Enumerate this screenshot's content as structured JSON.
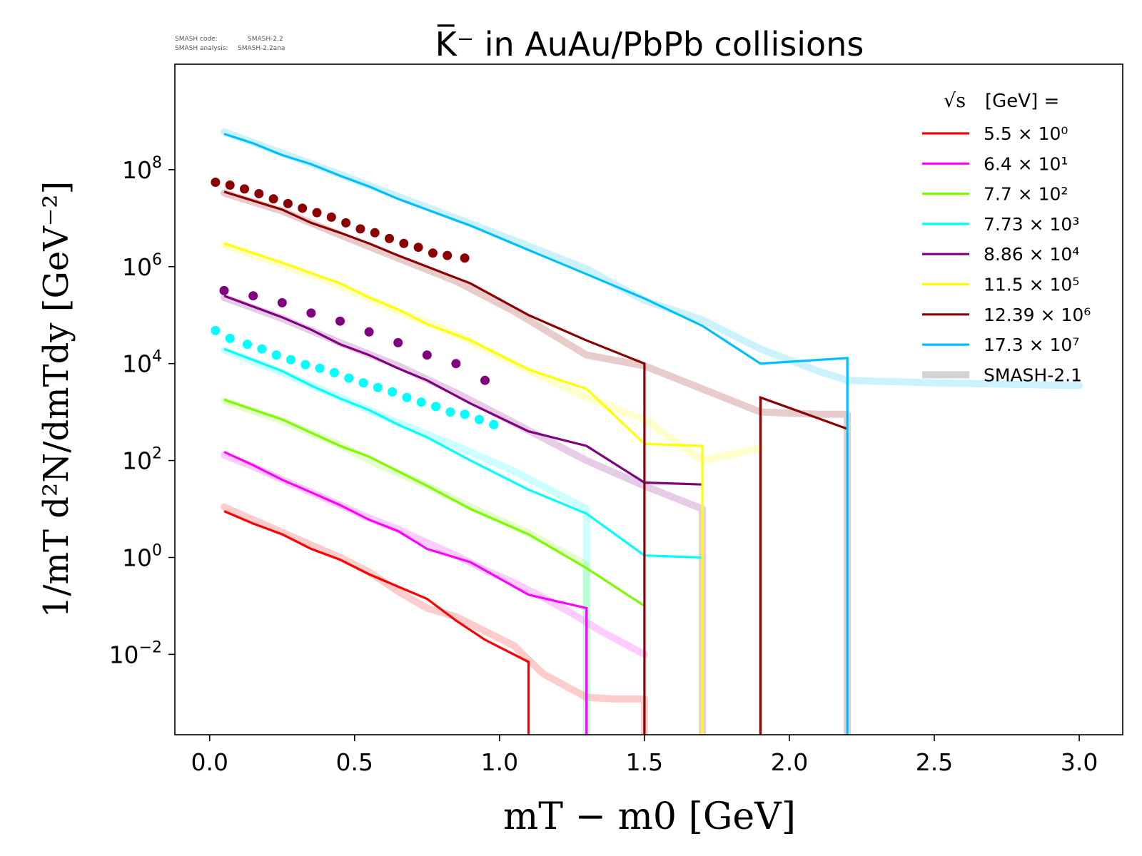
{
  "header": {
    "code_line_label": "SMASH code:",
    "code_line_value": "SMASH-2.2",
    "analysis_line_label": "SMASH analysis:",
    "analysis_line_value": "SMASH-2.2ana"
  },
  "chart_data": {
    "type": "line",
    "title": "K̅⁻ in AuAu/PbPb collisions",
    "xlabel": "mT − m0 [GeV]",
    "ylabel": "1/mT d²N/dmTdy [GeV⁻²]",
    "xscale": "linear",
    "yscale": "log",
    "xlim": [
      -0.12,
      3.15
    ],
    "ylim": [
      0.00022,
      15000000000
    ],
    "grid": false,
    "x_ticks": [
      {
        "value": 0.0,
        "label": "0.0"
      },
      {
        "value": 0.5,
        "label": "0.5"
      },
      {
        "value": 1.0,
        "label": "1.0"
      },
      {
        "value": 1.5,
        "label": "1.5"
      },
      {
        "value": 2.0,
        "label": "2.0"
      },
      {
        "value": 2.5,
        "label": "2.5"
      },
      {
        "value": 3.0,
        "label": "3.0"
      }
    ],
    "y_ticks": [
      {
        "value": 100000000,
        "base": "10",
        "exp": "8"
      },
      {
        "value": 1000000,
        "base": "10",
        "exp": "6"
      },
      {
        "value": 10000,
        "base": "10",
        "exp": "4"
      },
      {
        "value": 100,
        "base": "10",
        "exp": "2"
      },
      {
        "value": 1,
        "base": "10",
        "exp": "0"
      },
      {
        "value": 0.01,
        "base": "10",
        "exp": "−2"
      }
    ],
    "legend": {
      "location": "upper-right",
      "title_prefix": "√s",
      "title_suffix": "[GeV] =",
      "reference_label": "SMASH-2.1",
      "reference_color": "#d3d3d3"
    },
    "series": [
      {
        "name": "5.5 × 10⁰",
        "color": "#ff0000",
        "x": [
          0.05,
          0.15,
          0.25,
          0.35,
          0.45,
          0.55,
          0.65,
          0.75,
          0.85,
          0.95,
          1.1,
          1.1
        ],
        "y": [
          9,
          5,
          3,
          1.5,
          0.9,
          0.45,
          0.25,
          0.14,
          0.05,
          0.02,
          0.007,
          0.0002
        ],
        "ref_x": [
          0.05,
          0.15,
          0.25,
          0.35,
          0.45,
          0.55,
          0.65,
          0.75,
          0.85,
          0.95,
          1.05,
          1.15,
          1.3,
          1.4,
          1.5,
          1.5
        ],
        "ref_y": [
          11,
          6,
          3.3,
          1.8,
          1.0,
          0.5,
          0.2,
          0.09,
          0.06,
          0.03,
          0.015,
          0.004,
          0.0013,
          0.0012,
          0.0012,
          0.0002
        ],
        "exp_x": [],
        "exp_y": []
      },
      {
        "name": "6.4 × 10¹",
        "color": "#ff00ff",
        "x": [
          0.05,
          0.15,
          0.25,
          0.35,
          0.45,
          0.55,
          0.65,
          0.75,
          0.9,
          1.1,
          1.3,
          1.3
        ],
        "y": [
          150,
          80,
          40,
          22,
          12,
          6,
          3.5,
          1.5,
          0.8,
          0.17,
          0.09,
          0.0002
        ],
        "ref_x": [
          0.05,
          0.15,
          0.25,
          0.35,
          0.45,
          0.55,
          0.65,
          0.75,
          0.85,
          0.95,
          1.05,
          1.15,
          1.25,
          1.35,
          1.5
        ],
        "ref_y": [
          130,
          75,
          40,
          22,
          12,
          6.5,
          3.8,
          2.0,
          1.1,
          0.55,
          0.3,
          0.15,
          0.07,
          0.03,
          0.01
        ],
        "exp_x": [],
        "exp_y": []
      },
      {
        "name": "7.7 × 10²",
        "color": "#7cfc00",
        "x": [
          0.05,
          0.25,
          0.45,
          0.55,
          0.75,
          0.9,
          1.1,
          1.3,
          1.5
        ],
        "y": [
          1800,
          700,
          200,
          120,
          30,
          10,
          3,
          0.6,
          0.1
        ],
        "ref_x": [
          0.05,
          0.25,
          0.45,
          0.55,
          0.75,
          0.9,
          1.1,
          1.3,
          1.3
        ],
        "ref_y": [
          1700,
          650,
          210,
          100,
          30,
          11,
          3.2,
          0.7,
          0.0002
        ],
        "exp_x": [],
        "exp_y": []
      },
      {
        "name": "7.73 × 10³",
        "color": "#00ffff",
        "x": [
          0.05,
          0.25,
          0.35,
          0.45,
          0.55,
          0.65,
          0.75,
          0.9,
          1.1,
          1.3,
          1.5,
          1.7,
          1.7
        ],
        "y": [
          20000,
          7000,
          3500,
          1900,
          1100,
          550,
          300,
          100,
          25,
          8,
          1.1,
          1.0,
          0.0002
        ],
        "ref_x": [
          0.05,
          0.25,
          0.45,
          0.65,
          0.85,
          1.05,
          1.3,
          1.3
        ],
        "ref_y": [
          19000,
          6500,
          2000,
          600,
          200,
          60,
          10,
          0.0002
        ],
        "exp_x": [
          0.02,
          0.07,
          0.13,
          0.18,
          0.23,
          0.28,
          0.33,
          0.38,
          0.43,
          0.48,
          0.53,
          0.58,
          0.63,
          0.68,
          0.73,
          0.78,
          0.83,
          0.88,
          0.93,
          0.98
        ],
        "exp_y": [
          48000,
          33000,
          25000,
          20000,
          15000,
          12000,
          9500,
          8000,
          6500,
          5000,
          4000,
          3200,
          2600,
          2000,
          1600,
          1300,
          1000,
          900,
          700,
          550
        ]
      },
      {
        "name": "8.86 × 10⁴",
        "color": "#800080",
        "x": [
          0.05,
          0.25,
          0.35,
          0.45,
          0.55,
          0.65,
          0.75,
          0.9,
          1.1,
          1.3,
          1.5,
          1.7
        ],
        "y": [
          250000,
          90000,
          50000,
          25000,
          15000,
          8000,
          4500,
          1500,
          400,
          200,
          35,
          32
        ],
        "ref_x": [
          0.05,
          0.25,
          0.45,
          0.65,
          0.85,
          1.05,
          1.3,
          1.5,
          1.7,
          1.7
        ],
        "ref_y": [
          230000,
          85000,
          27000,
          9000,
          2500,
          600,
          100,
          30,
          10,
          0.0002
        ],
        "exp_x": [
          0.05,
          0.15,
          0.25,
          0.35,
          0.45,
          0.55,
          0.65,
          0.75,
          0.85,
          0.95
        ],
        "exp_y": [
          320000,
          250000,
          180000,
          110000,
          75000,
          45000,
          27000,
          15000,
          10000,
          4500
        ]
      },
      {
        "name": "11.5 × 10⁵",
        "color": "#ffff00",
        "x": [
          0.05,
          0.25,
          0.45,
          0.55,
          0.65,
          0.75,
          0.9,
          1.1,
          1.3,
          1.5,
          1.7,
          1.7
        ],
        "y": [
          3000000,
          1200000,
          450000,
          230000,
          130000,
          65000,
          30000,
          7500,
          3000,
          220,
          200,
          0.0002
        ],
        "ref_x": [
          0.05,
          0.25,
          0.45,
          0.65,
          0.85,
          1.05,
          1.3,
          1.5,
          1.7,
          1.9
        ],
        "ref_y": [
          2800000,
          1100000,
          400000,
          120000,
          40000,
          10000,
          2000,
          700,
          100,
          180
        ],
        "exp_x": [],
        "exp_y": []
      },
      {
        "name": "12.39 × 10⁶",
        "color": "#8b0000",
        "x": [
          0.05,
          0.25,
          0.35,
          0.45,
          0.55,
          0.65,
          0.75,
          0.9,
          1.1,
          1.3,
          1.5,
          1.5,
          1.9,
          1.9,
          2.2
        ],
        "y": [
          35000000,
          15000000,
          8000000,
          5000000,
          3000000,
          1700000,
          1000000,
          450000,
          100000,
          30000,
          10000,
          0.0002,
          0.0002,
          2000,
          450
        ],
        "ref_x": [
          0.05,
          0.25,
          0.45,
          0.65,
          0.85,
          1.05,
          1.3,
          1.5,
          1.7,
          1.9,
          2.1,
          2.2,
          2.2
        ],
        "ref_y": [
          33000000,
          14000000,
          4500000,
          1500000,
          500000,
          120000,
          15000,
          9000,
          3000,
          1000,
          900,
          900,
          0.0002
        ],
        "exp_x": [
          0.02,
          0.07,
          0.12,
          0.17,
          0.22,
          0.27,
          0.32,
          0.37,
          0.42,
          0.47,
          0.52,
          0.57,
          0.62,
          0.67,
          0.72,
          0.77,
          0.82,
          0.88
        ],
        "exp_y": [
          55000000,
          48000000,
          40000000,
          32000000,
          25000000,
          20000000,
          16000000,
          13000000,
          10500000,
          8000000,
          6000000,
          5000000,
          3800000,
          3000000,
          2500000,
          1900000,
          1700000,
          1500000
        ]
      },
      {
        "name": "17.3 × 10⁷",
        "color": "#00bfff",
        "x": [
          0.05,
          0.15,
          0.25,
          0.35,
          0.45,
          0.55,
          0.65,
          0.75,
          0.9,
          1.1,
          1.3,
          1.5,
          1.7,
          1.9,
          2.2,
          2.2
        ],
        "y": [
          550000000,
          350000000,
          200000000,
          130000000,
          75000000,
          45000000,
          25000000,
          15000000,
          7000000,
          2200000,
          700000,
          220000,
          60000,
          10000,
          13000,
          0.0002
        ],
        "ref_x": [
          0.05,
          0.25,
          0.45,
          0.65,
          0.85,
          1.05,
          1.3,
          1.5,
          1.7,
          1.9,
          2.1,
          2.2,
          2.5,
          3.0
        ],
        "ref_y": [
          600000000,
          220000000,
          80000000,
          28000000,
          10000000,
          3500000,
          900000,
          200000,
          80000,
          20000,
          7000,
          4500,
          4000,
          3500
        ],
        "exp_x": [],
        "exp_y": []
      }
    ]
  }
}
